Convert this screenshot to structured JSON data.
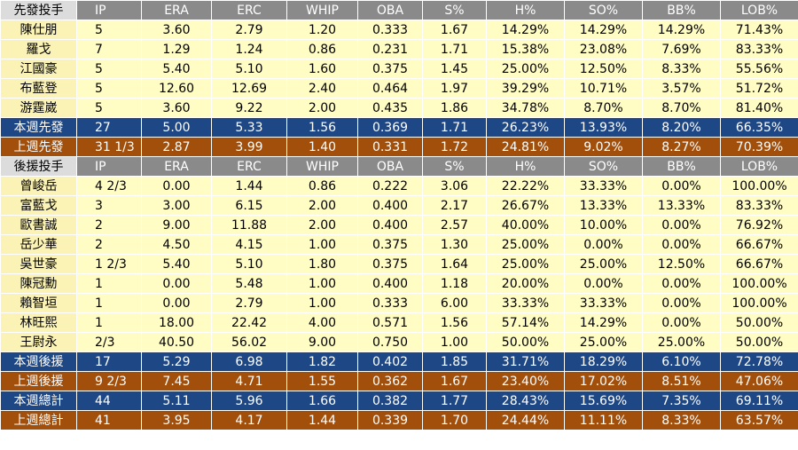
{
  "columns": [
    "IP",
    "ERA",
    "ERC",
    "WHIP",
    "OBA",
    "S%",
    "H%",
    "SO%",
    "BB%",
    "LOB%"
  ],
  "colors": {
    "header_bg": "#8a8a8a",
    "row_bg": "#fffcc4",
    "blue_summary": "#1e4785",
    "brown_summary": "#a14f0b"
  },
  "sections": [
    {
      "header": "先發投手",
      "rows": [
        [
          "陳仕朋",
          "5",
          "3.60",
          "2.79",
          "1.20",
          "0.333",
          "1.67",
          "14.29%",
          "14.29%",
          "14.29%",
          "71.43%"
        ],
        [
          "羅戈",
          "7",
          "1.29",
          "1.24",
          "0.86",
          "0.231",
          "1.71",
          "15.38%",
          "23.08%",
          "7.69%",
          "83.33%"
        ],
        [
          "江國豪",
          "5",
          "5.40",
          "5.10",
          "1.60",
          "0.375",
          "1.45",
          "25.00%",
          "12.50%",
          "8.33%",
          "55.56%"
        ],
        [
          "布藍登",
          "5",
          "12.60",
          "12.69",
          "2.40",
          "0.464",
          "1.97",
          "39.29%",
          "10.71%",
          "3.57%",
          "51.72%"
        ],
        [
          "游霆崴",
          "5",
          "3.60",
          "9.22",
          "2.00",
          "0.435",
          "1.86",
          "34.78%",
          "8.70%",
          "8.70%",
          "81.40%"
        ]
      ],
      "summaries": [
        {
          "style": "blue",
          "cells": [
            "本週先發",
            "27",
            "5.00",
            "5.33",
            "1.56",
            "0.369",
            "1.71",
            "26.23%",
            "13.93%",
            "8.20%",
            "66.35%"
          ]
        },
        {
          "style": "brown",
          "cells": [
            "上週先發",
            "31 1/3",
            "2.87",
            "3.99",
            "1.40",
            "0.331",
            "1.72",
            "24.81%",
            "9.02%",
            "8.27%",
            "70.39%"
          ]
        }
      ]
    },
    {
      "header": "後援投手",
      "rows": [
        [
          "曾峻岳",
          "4 2/3",
          "0.00",
          "1.44",
          "0.86",
          "0.222",
          "3.06",
          "22.22%",
          "33.33%",
          "0.00%",
          "100.00%"
        ],
        [
          "富藍戈",
          "3",
          "3.00",
          "6.15",
          "2.00",
          "0.400",
          "2.17",
          "26.67%",
          "13.33%",
          "13.33%",
          "83.33%"
        ],
        [
          "歐書誠",
          "2",
          "9.00",
          "11.88",
          "2.00",
          "0.400",
          "2.57",
          "40.00%",
          "10.00%",
          "0.00%",
          "76.92%"
        ],
        [
          "岳少華",
          "2",
          "4.50",
          "4.15",
          "1.00",
          "0.375",
          "1.30",
          "25.00%",
          "0.00%",
          "0.00%",
          "66.67%"
        ],
        [
          "吳世豪",
          "1 2/3",
          "5.40",
          "5.10",
          "1.80",
          "0.375",
          "1.64",
          "25.00%",
          "25.00%",
          "12.50%",
          "66.67%"
        ],
        [
          "陳冠勳",
          "1",
          "0.00",
          "5.48",
          "1.00",
          "0.400",
          "1.18",
          "20.00%",
          "0.00%",
          "0.00%",
          "100.00%"
        ],
        [
          "賴智垣",
          "1",
          "0.00",
          "2.79",
          "1.00",
          "0.333",
          "6.00",
          "33.33%",
          "33.33%",
          "0.00%",
          "100.00%"
        ],
        [
          "林旺熙",
          "1",
          "18.00",
          "22.42",
          "4.00",
          "0.571",
          "1.56",
          "57.14%",
          "14.29%",
          "0.00%",
          "50.00%"
        ],
        [
          "王尉永",
          "2/3",
          "40.50",
          "56.02",
          "9.00",
          "0.750",
          "1.00",
          "50.00%",
          "25.00%",
          "25.00%",
          "50.00%"
        ]
      ],
      "summaries": [
        {
          "style": "blue",
          "cells": [
            "本週後援",
            "17",
            "5.29",
            "6.98",
            "1.82",
            "0.402",
            "1.85",
            "31.71%",
            "18.29%",
            "6.10%",
            "72.78%"
          ]
        },
        {
          "style": "brown",
          "cells": [
            "上週後援",
            "9 2/3",
            "7.45",
            "4.71",
            "1.55",
            "0.362",
            "1.67",
            "23.40%",
            "17.02%",
            "8.51%",
            "47.06%"
          ]
        }
      ]
    }
  ],
  "totals": [
    {
      "style": "blue",
      "cells": [
        "本週總計",
        "44",
        "5.11",
        "5.96",
        "1.66",
        "0.382",
        "1.77",
        "28.43%",
        "15.69%",
        "7.35%",
        "69.11%"
      ]
    },
    {
      "style": "brown",
      "cells": [
        "上週總計",
        "41",
        "3.95",
        "4.17",
        "1.44",
        "0.339",
        "1.70",
        "24.44%",
        "11.11%",
        "8.33%",
        "63.57%"
      ]
    }
  ]
}
